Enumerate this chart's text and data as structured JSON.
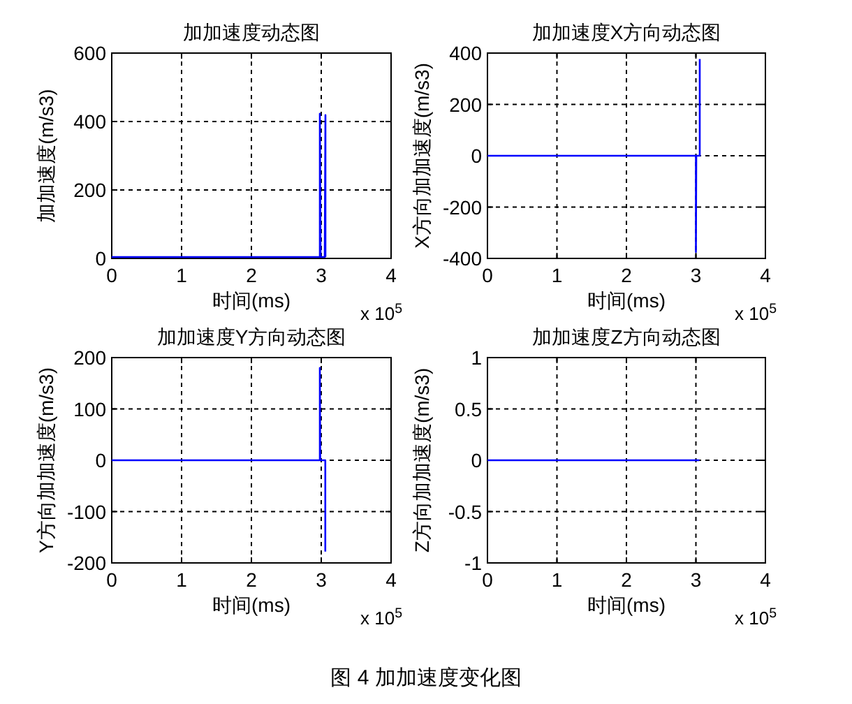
{
  "chart_data": [
    {
      "type": "line",
      "title": "加加速度动态图",
      "xlabel": "时间(ms)",
      "ylabel": "加加速度(m/s3)",
      "xlim": [
        0,
        4
      ],
      "xticks": [
        0,
        1,
        2,
        3,
        4
      ],
      "ylim": [
        0,
        600
      ],
      "yticks": [
        0,
        200,
        400,
        600
      ],
      "grid": true,
      "annotations": [
        "x 10$^{5}$"
      ],
      "series": [
        {
          "color": "#0000ff",
          "x": [
            0,
            2.98,
            2.98,
            2.99,
            3.05,
            3.06,
            3.06
          ],
          "values": [
            4,
            4,
            423,
            4,
            4,
            419,
            4
          ]
        }
      ]
    },
    {
      "type": "line",
      "title": "加加速度X方向动态图",
      "xlabel": "时间(ms)",
      "ylabel": "X方向加加速度(m/s3)",
      "xlim": [
        0,
        4
      ],
      "xticks": [
        0,
        1,
        2,
        3,
        4
      ],
      "ylim": [
        -400,
        400
      ],
      "yticks": [
        -400,
        -200,
        0,
        200,
        400
      ],
      "grid": true,
      "annotations": [
        "x 10$^{5}$"
      ],
      "series": [
        {
          "color": "#0000ff",
          "x": [
            0,
            3.0,
            3.0,
            3.005,
            3.055,
            3.055
          ],
          "values": [
            0,
            0,
            -375,
            0,
            0,
            377
          ]
        }
      ]
    },
    {
      "type": "line",
      "title": "加加速度Y方向动态图",
      "xlabel": "时间(ms)",
      "ylabel": "Y方向加加速度(m/s3)",
      "xlim": [
        0,
        4
      ],
      "xticks": [
        0,
        1,
        2,
        3,
        4
      ],
      "ylim": [
        -200,
        200
      ],
      "yticks": [
        -200,
        -100,
        0,
        100,
        200
      ],
      "grid": true,
      "annotations": [
        "x 10$^{5}$"
      ],
      "series": [
        {
          "color": "#0000ff",
          "x": [
            0,
            2.98,
            2.98,
            2.985,
            3.058,
            3.058
          ],
          "values": [
            0,
            0,
            180,
            0,
            0,
            -178
          ]
        }
      ]
    },
    {
      "type": "line",
      "title": "加加速度Z方向动态图",
      "xlabel": "时间(ms)",
      "ylabel": "Z方向加加速度(m/s3)",
      "xlim": [
        0,
        4
      ],
      "xticks": [
        0,
        1,
        2,
        3,
        4
      ],
      "ylim": [
        -1,
        1
      ],
      "yticks": [
        -1,
        -0.5,
        0,
        0.5,
        1
      ],
      "grid": true,
      "annotations": [
        "x 10$^{5}$",
        "图 4  加加速度变化图"
      ],
      "series": [
        {
          "color": "#0000ff",
          "x": [
            0,
            3.05
          ],
          "values": [
            0,
            0
          ]
        }
      ]
    }
  ]
}
